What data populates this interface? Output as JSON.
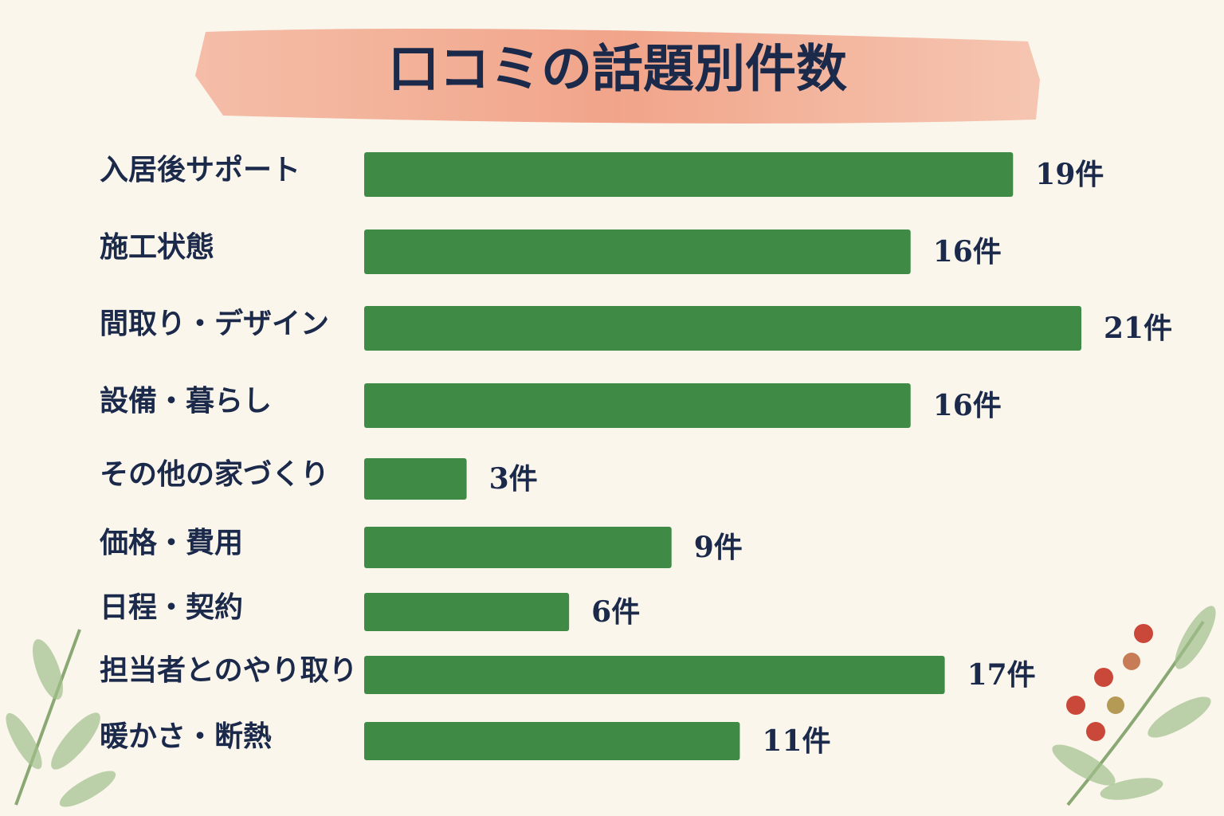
{
  "chart_data": {
    "type": "bar",
    "orientation": "horizontal",
    "title": "口コミの話題別件数",
    "categories": [
      "入居後サポート",
      "施工状態",
      "間取り・デザイン",
      "設備・暮らし",
      "その他の家づくり",
      "価格・費用",
      "日程・契約",
      "担当者とのやり取り",
      "暖かさ・断熱"
    ],
    "values": [
      19,
      16,
      21,
      16,
      3,
      9,
      6,
      17,
      11
    ],
    "value_labels": [
      "19件",
      "16件",
      "21件",
      "16件",
      "3件",
      "9件",
      "6件",
      "17件",
      "11件"
    ],
    "color": "#3f8a45"
  }
}
